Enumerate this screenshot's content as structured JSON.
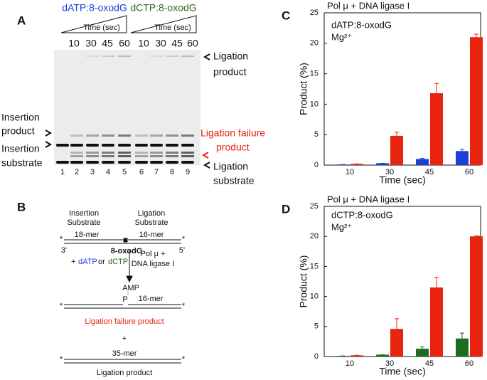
{
  "panel_a": {
    "label": "A",
    "group_labels": [
      "dATP:8-oxodG",
      "dCTP:8-oxodG"
    ],
    "time_label": "Time (sec)",
    "times": [
      "10",
      "30",
      "45",
      "60"
    ],
    "lanes": [
      "1",
      "2",
      "3",
      "4",
      "5",
      "6",
      "7",
      "8",
      "9"
    ],
    "insertion_product": [
      "Insertion",
      "product"
    ],
    "insertion_substrate": [
      "Insertion",
      "substrate"
    ],
    "ligation_product": [
      "Ligation",
      "product"
    ],
    "ligation_failure_product": [
      "Ligation failure",
      "product"
    ],
    "ligation_substrate": [
      "Ligation",
      "substrate"
    ]
  },
  "panel_b": {
    "label": "B",
    "insertion_substrate": [
      "Insertion",
      "Substrate"
    ],
    "ligation_substrate": [
      "Ligation",
      "Substrate"
    ],
    "star": "*",
    "mer18": "18-mer",
    "mer16": "16-mer",
    "end3": "3'",
    "lesion": "8-oxodG",
    "end5": "5'",
    "plus": "+",
    "datp": "dATP",
    "or": "or",
    "dctp": "dCTP",
    "enzyme": [
      "Pol μ +",
      "DNA ligase I"
    ],
    "amp": "AMP",
    "p": "P",
    "failure": "Ligation failure product",
    "mer35": "35-mer",
    "product": "Ligation product"
  },
  "chart_data": [
    {
      "type": "bar",
      "label": "C",
      "title": "Pol μ + DNA ligase I",
      "annotations": [
        "dATP:8-oxodG",
        "Mg²⁺"
      ],
      "x_label": "Time (sec)",
      "y_label": "Product (%)",
      "categories": [
        "10",
        "30",
        "45",
        "60"
      ],
      "series": [
        {
          "color": "#1c3fd8",
          "values": [
            0.1,
            0.3,
            1.0,
            2.3
          ],
          "errors": [
            0,
            0,
            0.1,
            0.3
          ]
        },
        {
          "color": "#e8230f",
          "values": [
            0.2,
            4.8,
            11.8,
            21.0
          ],
          "errors": [
            0,
            0.6,
            1.6,
            0.5
          ]
        }
      ],
      "ylim": [
        0,
        25
      ],
      "yticks": [
        0,
        5,
        10,
        15,
        20,
        25
      ]
    },
    {
      "type": "bar",
      "label": "D",
      "title": "Pol μ + DNA ligase I",
      "annotations": [
        "dCTP:8-oxodG",
        "Mg²⁺"
      ],
      "x_label": "Time (sec)",
      "y_label": "Product (%)",
      "categories": [
        "10",
        "30",
        "45",
        "60"
      ],
      "series": [
        {
          "color": "#1f6b1f",
          "values": [
            0.1,
            0.3,
            1.3,
            3.0
          ],
          "errors": [
            0,
            0,
            0.3,
            0.9
          ]
        },
        {
          "color": "#e8230f",
          "values": [
            0.2,
            4.6,
            11.5,
            20.0
          ],
          "errors": [
            0,
            1.7,
            1.7,
            0.1
          ]
        }
      ],
      "ylim": [
        0,
        25
      ],
      "yticks": [
        0,
        5,
        10,
        15,
        20,
        25
      ]
    }
  ]
}
